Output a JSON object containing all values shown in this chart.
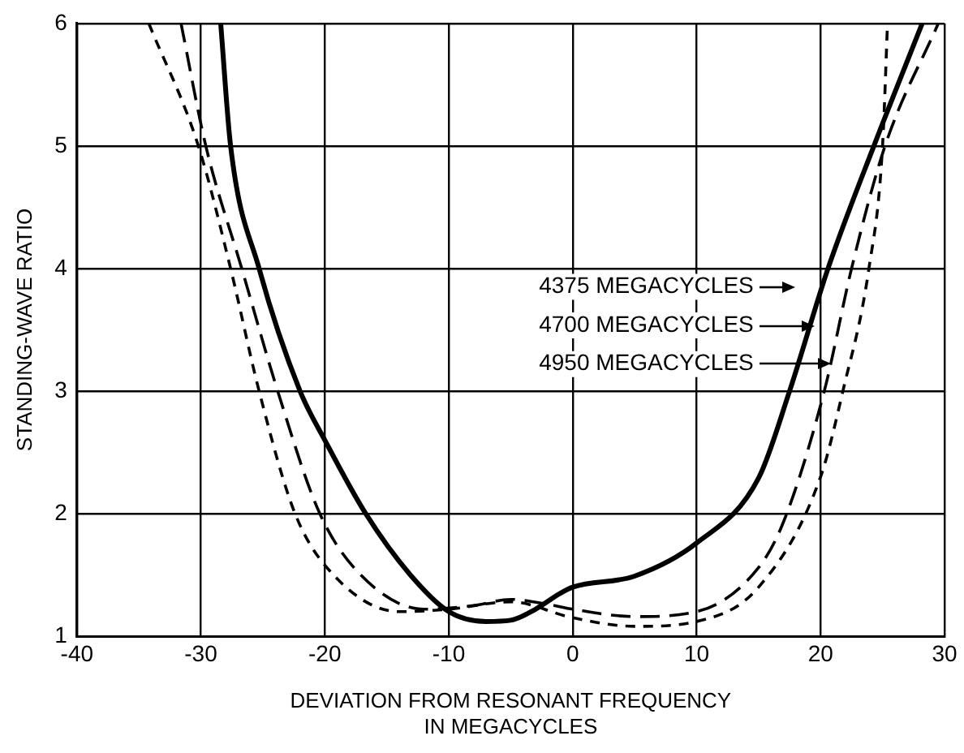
{
  "chart_data": {
    "type": "line",
    "xlabel": "DEVIATION FROM RESONANT FREQUENCY\nIN MEGACYCLES",
    "ylabel": "STANDING-WAVE RATIO",
    "xlim": [
      -40,
      30
    ],
    "xticks": [
      -40,
      -30,
      -20,
      -10,
      0,
      10,
      20,
      30
    ],
    "ylim": [
      1,
      6
    ],
    "yticks": [
      1,
      2,
      3,
      4,
      5,
      6
    ],
    "grid": true,
    "legend": false,
    "marker": "none",
    "series": [
      {
        "color": "#000000",
        "line_style": "solid",
        "x": [
          -28.4,
          -27.6,
          -25.3,
          -22,
          -20,
          -16.7,
          -13.1,
          -10,
          -7,
          -5,
          -3,
          -1,
          0,
          5,
          10,
          15,
          17.5,
          20.6,
          24.3,
          28.2
        ],
        "values": [
          6,
          5,
          4,
          3,
          2.6,
          2,
          1.5,
          1.2,
          1.12,
          1.13,
          1.22,
          1.35,
          1.4,
          1.49,
          1.76,
          2.29,
          3,
          4,
          5,
          6
        ]
      },
      {
        "color": "#000000",
        "line_style": "dashed",
        "x": [
          -31.6,
          -29.6,
          -26.7,
          -23.8,
          -20.4,
          -17.1,
          -12,
          -8,
          -5,
          -2,
          0,
          5,
          10,
          15,
          17,
          20.3,
          22.5,
          25.2,
          29.5
        ],
        "values": [
          6,
          5,
          4,
          3,
          2,
          1.5,
          1.22,
          1.25,
          1.3,
          1.26,
          1.22,
          1.16,
          1.2,
          1.56,
          1.93,
          3,
          4,
          5,
          6
        ]
      },
      {
        "color": "#000000",
        "line_style": "dotted",
        "x": [
          -34.2,
          -30.2,
          -27.6,
          -25.3,
          -22.4,
          -19.3,
          -14,
          -10,
          -5,
          0,
          5,
          10,
          15,
          20,
          21.8,
          23.9,
          25,
          25.4
        ],
        "values": [
          6,
          5,
          4,
          3,
          2,
          1.5,
          1.2,
          1.22,
          1.28,
          1.15,
          1.08,
          1.12,
          1.4,
          2.3,
          3,
          4,
          5,
          6
        ]
      }
    ],
    "annotations": [
      "4375 MEGACYCLES",
      "4700 MEGACYCLES",
      "4950 MEGACYCLES"
    ]
  }
}
